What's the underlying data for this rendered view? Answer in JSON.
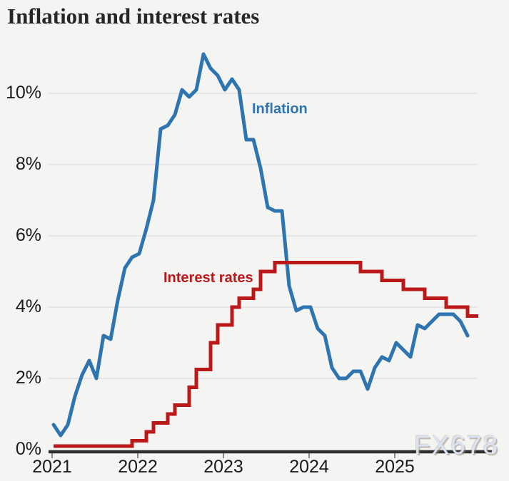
{
  "watermark": "FX678",
  "chart_data": {
    "type": "line",
    "title": "Inflation and interest rates",
    "grid": "horizontal",
    "x_axis": {
      "tick_labels": [
        "2021",
        "2022",
        "2023",
        "2024",
        "2025"
      ],
      "start": "2021-01",
      "end": "2025-11",
      "frequency": "monthly"
    },
    "y_axis": {
      "tick_labels": [
        "0%",
        "2%",
        "4%",
        "6%",
        "8%",
        "10%"
      ],
      "ticks": [
        0,
        2,
        4,
        6,
        8,
        10
      ],
      "unit": "%",
      "ylim": [
        0,
        11.5
      ]
    },
    "series": [
      {
        "name": "Inflation",
        "label_text": "Inflation",
        "style": "line",
        "color": "#2e74b1",
        "x_start": "2021-01",
        "values": [
          0.7,
          0.4,
          0.7,
          1.5,
          2.1,
          2.5,
          2.0,
          3.2,
          3.1,
          4.2,
          5.1,
          5.4,
          5.5,
          6.2,
          7.0,
          9.0,
          9.1,
          9.4,
          10.1,
          9.9,
          10.1,
          11.1,
          10.7,
          10.5,
          10.1,
          10.4,
          10.1,
          8.7,
          8.7,
          7.9,
          6.8,
          6.7,
          6.7,
          4.6,
          3.9,
          4.0,
          4.0,
          3.4,
          3.2,
          2.3,
          2.0,
          2.0,
          2.2,
          2.2,
          1.7,
          2.3,
          2.6,
          2.5,
          3.0,
          2.8,
          2.6,
          3.5,
          3.4,
          3.6,
          3.8,
          3.8,
          3.8,
          3.6,
          3.2
        ]
      },
      {
        "name": "Interest rates",
        "label_text": "Interest rates",
        "style": "step",
        "color": "#bb1919",
        "x_start": "2021-01",
        "changes": [
          [
            0,
            0.1
          ],
          [
            11,
            0.25
          ],
          [
            13,
            0.5
          ],
          [
            14,
            0.75
          ],
          [
            16,
            1.0
          ],
          [
            17,
            1.25
          ],
          [
            19,
            1.75
          ],
          [
            20,
            2.25
          ],
          [
            22,
            3.0
          ],
          [
            23,
            3.5
          ],
          [
            25,
            4.0
          ],
          [
            26,
            4.25
          ],
          [
            28,
            4.5
          ],
          [
            29,
            5.0
          ],
          [
            31,
            5.25
          ],
          [
            43,
            5.0
          ],
          [
            46,
            4.75
          ],
          [
            49,
            4.5
          ],
          [
            52,
            4.25
          ],
          [
            55,
            4.0
          ],
          [
            58,
            3.75
          ]
        ],
        "end_month": 59
      }
    ]
  }
}
